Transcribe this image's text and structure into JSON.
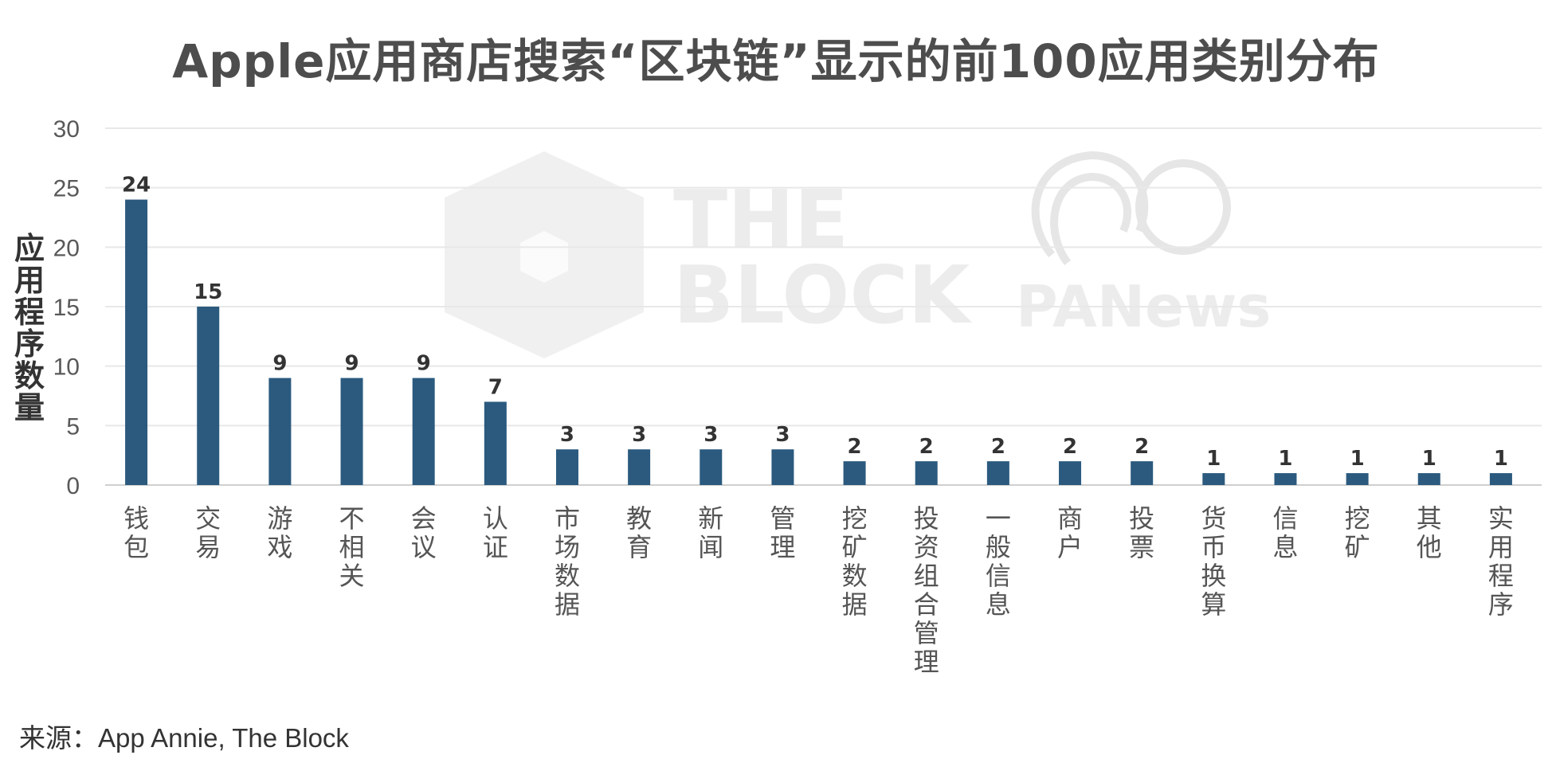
{
  "chart_data": {
    "type": "bar",
    "title": "Apple应用商店搜索“区块链”显示的前100应用类别分布",
    "ylabel": "应用程序数量",
    "xlabel": "",
    "ylim": [
      0,
      30
    ],
    "yticks": [
      0,
      5,
      10,
      15,
      20,
      25,
      30
    ],
    "grid": true,
    "bar_color": "#2b5a7e",
    "categories": [
      "钱包",
      "交易",
      "游戏",
      "不相关",
      "会议",
      "认证",
      "市场数据",
      "教育",
      "新闻",
      "管理",
      "挖矿数据",
      "投资组合管理",
      "一般信息",
      "商户",
      "投票",
      "货币换算",
      "信息",
      "挖矿",
      "其他",
      "实用程序"
    ],
    "values": [
      24,
      15,
      9,
      9,
      9,
      7,
      3,
      3,
      3,
      3,
      2,
      2,
      2,
      2,
      2,
      1,
      1,
      1,
      1,
      1
    ]
  },
  "source": "来源：App Annie, The Block",
  "watermarks": [
    "THE",
    "BLOCK",
    "PANews"
  ]
}
